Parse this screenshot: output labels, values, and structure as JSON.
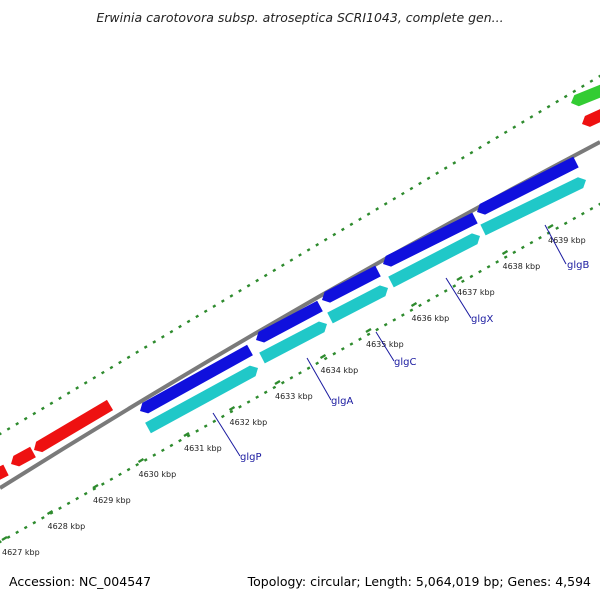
{
  "title": "Erwinia carotovora subsp. atroseptica SCRI1043, complete gen...",
  "accession_text": "Accession: NC_004547",
  "summary_text": "Topology: circular; Length: 5,064,019 bp; Genes: 4,594",
  "colors": {
    "backbone": "#7a7a7a",
    "tick": "#2e8b2e",
    "forward_gene": "#1010dd",
    "reverse_gene": "#20c8c8",
    "other_red": "#ee1111",
    "other_green": "#33cc33",
    "label_line": "#1a1aa0"
  },
  "kbp_labels": [
    "4627 kbp",
    "4628 kbp",
    "4629 kbp",
    "4630 kbp",
    "4631 kbp",
    "4632 kbp",
    "4633 kbp",
    "4634 kbp",
    "4635 kbp",
    "4636 kbp",
    "4637 kbp",
    "4638 kbp",
    "4639 kbp"
  ],
  "genes": [
    {
      "name": "glgP"
    },
    {
      "name": "glgA"
    },
    {
      "name": "glgC"
    },
    {
      "name": "glgX"
    },
    {
      "name": "glgB"
    }
  ]
}
